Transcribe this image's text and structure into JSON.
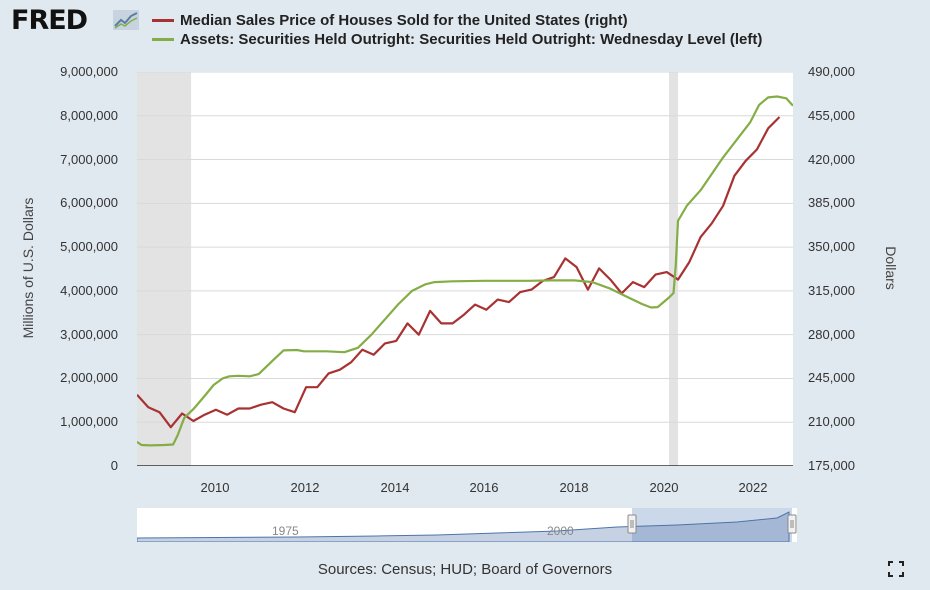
{
  "brand": {
    "logo_text": "FRED",
    "logo_icon": "chart-line-icon"
  },
  "legend": [
    {
      "label": "Median Sales Price of Houses Sold for the United States (right)",
      "color": "#a83232"
    },
    {
      "label": "Assets: Securities Held Outright: Securities Held Outright: Wednesday Level (left)",
      "color": "#84ad46"
    }
  ],
  "axes": {
    "left_label": "Millions of U.S. Dollars",
    "right_label": "Dollars",
    "left_ticks": [
      "9,000,000",
      "8,000,000",
      "7,000,000",
      "6,000,000",
      "5,000,000",
      "4,000,000",
      "3,000,000",
      "2,000,000",
      "1,000,000",
      "0"
    ],
    "right_ticks": [
      "490,000",
      "455,000",
      "420,000",
      "385,000",
      "350,000",
      "315,000",
      "280,000",
      "245,000",
      "210,000",
      "175,000"
    ],
    "x_ticks": [
      "2010",
      "2012",
      "2014",
      "2016",
      "2018",
      "2020",
      "2022"
    ]
  },
  "navigator": {
    "labels": [
      "1975",
      "2000"
    ]
  },
  "footer": {
    "sources": "Sources: Census; HUD; Board of Governors"
  },
  "chart_data": {
    "type": "line",
    "x_range": [
      2008.3,
      2022.85
    ],
    "y_left_range": [
      0,
      9000000
    ],
    "y_right_range": [
      175000,
      490000
    ],
    "grid": true,
    "recessions": [
      [
        2008.3,
        2009.5
      ],
      [
        2020.1,
        2020.3
      ]
    ],
    "series": [
      {
        "name": "Median Sales Price of Houses Sold for the United States (right)",
        "axis": "right",
        "color": "#a83232",
        "x": [
          2008.3,
          2008.55,
          2008.8,
          2009.05,
          2009.3,
          2009.55,
          2009.8,
          2010.05,
          2010.3,
          2010.55,
          2010.8,
          2011.05,
          2011.3,
          2011.55,
          2011.8,
          2012.05,
          2012.3,
          2012.55,
          2012.8,
          2013.05,
          2013.3,
          2013.55,
          2013.8,
          2014.05,
          2014.3,
          2014.55,
          2014.8,
          2015.05,
          2015.3,
          2015.55,
          2015.8,
          2016.05,
          2016.3,
          2016.55,
          2016.8,
          2017.05,
          2017.3,
          2017.55,
          2017.8,
          2018.05,
          2018.3,
          2018.55,
          2018.8,
          2019.05,
          2019.3,
          2019.55,
          2019.8,
          2020.05,
          2020.3,
          2020.55,
          2020.8,
          2021.05,
          2021.3,
          2021.55,
          2021.8,
          2022.05,
          2022.3,
          2022.55
        ],
        "y": [
          232000,
          222000,
          218000,
          206000,
          217000,
          211000,
          216000,
          220000,
          216000,
          221000,
          221000,
          224000,
          226000,
          221000,
          218000,
          238000,
          238000,
          249000,
          252000,
          258000,
          268000,
          264000,
          273000,
          275000,
          289000,
          280000,
          299000,
          289000,
          289000,
          296000,
          304000,
          300000,
          308000,
          306000,
          314000,
          316000,
          323000,
          326000,
          341000,
          334000,
          316000,
          333000,
          324000,
          313000,
          322000,
          318000,
          328000,
          330000,
          324000,
          338000,
          358000,
          369000,
          383000,
          407000,
          419000,
          428000,
          445000,
          454000
        ]
      },
      {
        "name": "Assets: Securities Held Outright: Securities Held Outright: Wednesday Level (left)",
        "axis": "left",
        "color": "#84ad46",
        "x": [
          2008.3,
          2008.4,
          2008.6,
          2008.9,
          2009.1,
          2009.2,
          2009.35,
          2009.55,
          2009.8,
          2010.0,
          2010.2,
          2010.35,
          2010.55,
          2010.8,
          2011.0,
          2011.3,
          2011.55,
          2011.85,
          2012.0,
          2012.5,
          2012.9,
          2013.2,
          2013.5,
          2013.8,
          2014.1,
          2014.4,
          2014.7,
          2014.9,
          2015.3,
          2016.0,
          2016.5,
          2017.0,
          2017.5,
          2018.0,
          2018.4,
          2018.8,
          2019.2,
          2019.5,
          2019.7,
          2019.85,
          2020.1,
          2020.2,
          2020.25,
          2020.3,
          2020.5,
          2020.8,
          2021.0,
          2021.3,
          2021.6,
          2021.9,
          2022.1,
          2022.3,
          2022.5,
          2022.7,
          2022.85
        ],
        "y": [
          550000,
          480000,
          470000,
          480000,
          490000,
          700000,
          1100000,
          1300000,
          1600000,
          1850000,
          2000000,
          2050000,
          2060000,
          2050000,
          2100000,
          2400000,
          2640000,
          2650000,
          2620000,
          2620000,
          2600000,
          2700000,
          3000000,
          3350000,
          3700000,
          4000000,
          4150000,
          4200000,
          4220000,
          4230000,
          4230000,
          4230000,
          4240000,
          4240000,
          4200000,
          4050000,
          3850000,
          3700000,
          3620000,
          3630000,
          3850000,
          3950000,
          4600000,
          5600000,
          5950000,
          6300000,
          6600000,
          7050000,
          7450000,
          7850000,
          8250000,
          8420000,
          8440000,
          8400000,
          8230000
        ]
      }
    ]
  }
}
